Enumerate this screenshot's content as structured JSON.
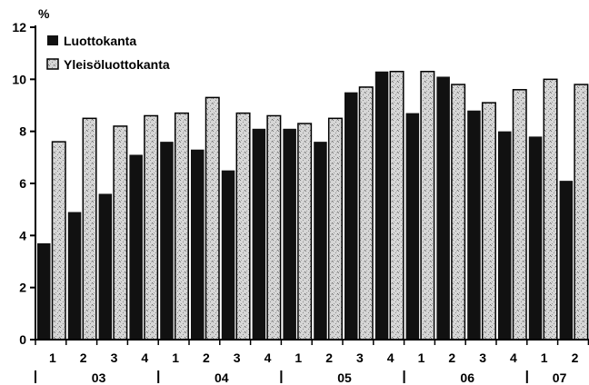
{
  "chart_data": {
    "type": "bar",
    "ylabel": "%",
    "ylim": [
      0,
      12
    ],
    "yticks": [
      0,
      2,
      4,
      6,
      8,
      10,
      12
    ],
    "categories": [
      "1",
      "2",
      "3",
      "4",
      "1",
      "2",
      "3",
      "4",
      "1",
      "2",
      "3",
      "4",
      "1",
      "2",
      "3",
      "4",
      "1",
      "2"
    ],
    "groups": [
      {
        "label": "03",
        "start": 0,
        "count": 4
      },
      {
        "label": "04",
        "start": 4,
        "count": 4
      },
      {
        "label": "05",
        "start": 8,
        "count": 4
      },
      {
        "label": "06",
        "start": 12,
        "count": 4
      },
      {
        "label": "07",
        "start": 16,
        "count": 2
      }
    ],
    "series": [
      {
        "name": "Luottokanta",
        "color": "#111111",
        "values": [
          3.7,
          4.9,
          5.6,
          7.1,
          7.6,
          7.3,
          6.5,
          8.1,
          8.1,
          7.6,
          9.5,
          10.3,
          8.7,
          10.1,
          8.8,
          8.0,
          7.8,
          6.1
        ]
      },
      {
        "name": "Yleisöluottokanta",
        "color": "#cfcfcf",
        "values": [
          7.6,
          8.5,
          8.2,
          8.6,
          8.7,
          9.3,
          8.7,
          8.6,
          8.3,
          8.5,
          9.7,
          10.3,
          10.3,
          9.8,
          9.1,
          9.6,
          10.0,
          9.8
        ]
      }
    ],
    "legend": "top-left",
    "grid": false
  }
}
